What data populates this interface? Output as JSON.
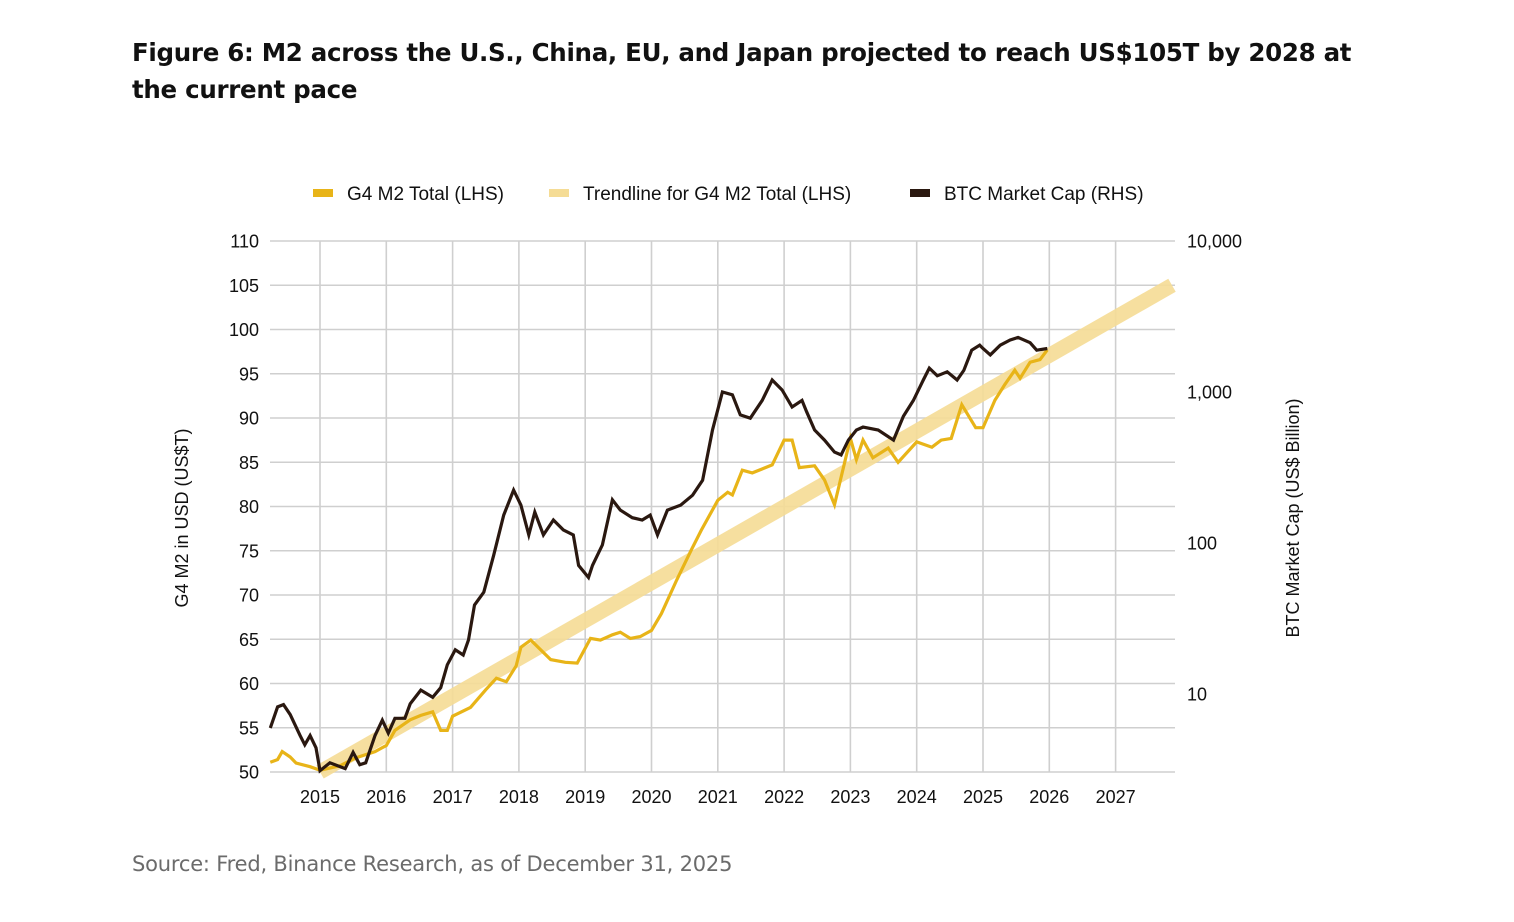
{
  "figure": {
    "title": "Figure 6: M2 across the U.S., China, EU, and Japan projected to reach US$105T by 2028 at the current pace",
    "source": "Source: Fred, Binance Research, as of December 31, 2025"
  },
  "colors": {
    "m2": "#e8b418",
    "trend": "#f5dc95",
    "btc": "#2a1810",
    "grid": "#cfcfcf"
  },
  "chart_data": {
    "type": "line",
    "title": "Figure 6: M2 across the U.S., China, EU, and Japan projected to reach US$105T by 2028 at the current pace",
    "xlabel": "",
    "ylabel": "G4 M2 in USD (US$T)",
    "y2label": "BTC Market Cap (US$ Billion)",
    "xlim": [
      2014.25,
      2027.9
    ],
    "ylim": [
      50,
      110
    ],
    "y2lim": [
      3.04,
      10000
    ],
    "y2scale": "log",
    "grid": true,
    "legend_position": "top-center",
    "x_ticks": [
      "2015",
      "2016",
      "2017",
      "2018",
      "2019",
      "2020",
      "2021",
      "2022",
      "2023",
      "2024",
      "2025",
      "2026",
      "2027"
    ],
    "x_tick_values": [
      2015,
      2016,
      2017,
      2018,
      2019,
      2020,
      2021,
      2022,
      2023,
      2024,
      2025,
      2026,
      2027
    ],
    "y_ticks": [
      "50",
      "55",
      "60",
      "65",
      "70",
      "75",
      "80",
      "85",
      "90",
      "95",
      "100",
      "105",
      "110"
    ],
    "y_tick_values": [
      50,
      55,
      60,
      65,
      70,
      75,
      80,
      85,
      90,
      95,
      100,
      105,
      110
    ],
    "y2_ticks": [
      "10",
      "100",
      "1,000",
      "10,000"
    ],
    "y2_tick_values": [
      10,
      100,
      1000,
      10000
    ],
    "series": [
      {
        "name": "G4 M2 Total (LHS)",
        "axis": "left",
        "x": [
          2014.25,
          2014.36,
          2014.43,
          2014.55,
          2014.64,
          2014.85,
          2015.0,
          2015.3,
          2015.54,
          2015.83,
          2016.0,
          2016.13,
          2016.36,
          2016.52,
          2016.7,
          2016.82,
          2016.92,
          2017.0,
          2017.27,
          2017.5,
          2017.66,
          2017.81,
          2017.96,
          2018.03,
          2018.18,
          2018.48,
          2018.7,
          2018.88,
          2019.08,
          2019.23,
          2019.41,
          2019.53,
          2019.68,
          2019.83,
          2020.0,
          2020.15,
          2020.38,
          2020.6,
          2020.75,
          2021.0,
          2021.15,
          2021.22,
          2021.37,
          2021.52,
          2021.82,
          2022.0,
          2022.12,
          2022.23,
          2022.46,
          2022.61,
          2022.76,
          2023.0,
          2023.09,
          2023.19,
          2023.34,
          2023.57,
          2023.72,
          2024.0,
          2024.23,
          2024.37,
          2024.52,
          2024.68,
          2024.89,
          2025.0,
          2025.18,
          2025.33,
          2025.48,
          2025.56,
          2025.71,
          2025.86,
          2025.97
        ],
        "values": [
          51.1,
          51.4,
          52.3,
          51.7,
          51.0,
          50.6,
          50.2,
          50.7,
          51.6,
          52.3,
          53.0,
          54.7,
          55.9,
          56.4,
          56.8,
          54.7,
          54.7,
          56.3,
          57.3,
          59.3,
          60.6,
          60.2,
          62.0,
          64.1,
          64.9,
          62.7,
          62.4,
          62.3,
          65.1,
          64.9,
          65.5,
          65.8,
          65.1,
          65.3,
          66.0,
          67.9,
          71.7,
          75.1,
          77.3,
          80.7,
          81.6,
          81.3,
          84.1,
          83.8,
          84.7,
          87.5,
          87.5,
          84.4,
          84.6,
          83.0,
          80.2,
          87.7,
          85.3,
          87.5,
          85.5,
          86.6,
          85.0,
          87.3,
          86.7,
          87.5,
          87.7,
          91.5,
          88.9,
          88.9,
          92.0,
          93.8,
          95.4,
          94.5,
          96.3,
          96.6,
          97.7
        ]
      },
      {
        "name": "Trendline for G4 M2 Total (LHS)",
        "axis": "left",
        "x": [
          2015.0,
          2027.85
        ],
        "values": [
          50.0,
          105.0
        ]
      },
      {
        "name": "BTC Market Cap (RHS)",
        "axis": "right",
        "x": [
          2014.25,
          2014.36,
          2014.45,
          2014.55,
          2014.7,
          2014.77,
          2014.85,
          2014.94,
          2015.0,
          2015.15,
          2015.38,
          2015.5,
          2015.6,
          2015.69,
          2015.83,
          2015.94,
          2016.03,
          2016.13,
          2016.28,
          2016.36,
          2016.52,
          2016.7,
          2016.82,
          2016.92,
          2017.04,
          2017.16,
          2017.24,
          2017.33,
          2017.47,
          2017.62,
          2017.77,
          2017.92,
          2018.03,
          2018.15,
          2018.24,
          2018.37,
          2018.52,
          2018.67,
          2018.82,
          2018.9,
          2019.05,
          2019.11,
          2019.26,
          2019.41,
          2019.53,
          2019.71,
          2019.86,
          2019.98,
          2020.09,
          2020.24,
          2020.44,
          2020.62,
          2020.77,
          2020.92,
          2021.07,
          2021.22,
          2021.34,
          2021.49,
          2021.67,
          2021.82,
          2021.97,
          2022.12,
          2022.27,
          2022.34,
          2022.46,
          2022.61,
          2022.76,
          2022.86,
          2022.97,
          2023.09,
          2023.19,
          2023.42,
          2023.65,
          2023.8,
          2023.95,
          2024.1,
          2024.19,
          2024.31,
          2024.46,
          2024.61,
          2024.71,
          2024.83,
          2024.95,
          2025.0,
          2025.11,
          2025.26,
          2025.41,
          2025.53,
          2025.71,
          2025.81,
          2025.97
        ],
        "values": [
          5.95,
          8.2,
          8.5,
          7.3,
          5.3,
          4.6,
          5.3,
          4.4,
          3.1,
          3.5,
          3.2,
          4.1,
          3.4,
          3.5,
          5.3,
          6.7,
          5.5,
          6.9,
          6.9,
          8.6,
          10.6,
          9.5,
          11.0,
          15.6,
          19.6,
          18.1,
          22.8,
          38.8,
          47.2,
          83,
          153,
          224,
          178,
          113,
          160,
          113,
          142,
          122,
          113,
          71,
          59,
          71,
          97,
          193,
          165,
          147,
          142,
          153,
          113,
          165,
          178,
          207,
          260,
          560,
          1000,
          958,
          705,
          670,
          880,
          1200,
          1030,
          795,
          880,
          740,
          560,
          480,
          400,
          383,
          480,
          560,
          585,
          560,
          480,
          690,
          880,
          1200,
          1440,
          1280,
          1360,
          1200,
          1390,
          1890,
          2040,
          1940,
          1760,
          2040,
          2210,
          2300,
          2120,
          1890,
          1940
        ]
      }
    ]
  }
}
